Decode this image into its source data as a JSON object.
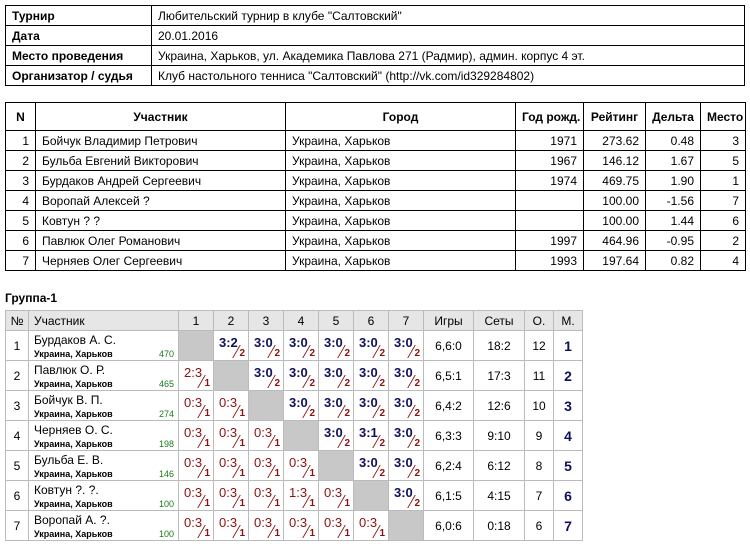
{
  "info": [
    {
      "label": "Турнир",
      "value": "Любительский турнир в клубе \"Салтовский\""
    },
    {
      "label": "Дата",
      "value": "20.01.2016"
    },
    {
      "label": "Место проведения",
      "value": "Украина, Харьков, ул. Академика Павлова 271 (Радмир), админ. корпус 4 эт."
    },
    {
      "label": "Организатор / судья",
      "value": "Клуб настольного тенниса \"Салтовский\" (http://vk.com/id329284802)"
    }
  ],
  "players": {
    "headers": [
      "N",
      "Участник",
      "Город",
      "Год рожд.",
      "Рейтинг",
      "Дельта",
      "Место"
    ],
    "rows": [
      [
        "1",
        "Бойчук Владимир Петрович",
        "Украина, Харьков",
        "1971",
        "273.62",
        "0.48",
        "3"
      ],
      [
        "2",
        "Бульба Евгений Викторович",
        "Украина, Харьков",
        "1967",
        "146.12",
        "1.67",
        "5"
      ],
      [
        "3",
        "Бурдаков Андрей Сергеевич",
        "Украина, Харьков",
        "1974",
        "469.75",
        "1.90",
        "1"
      ],
      [
        "4",
        "Воропай Алексей ?",
        "Украина, Харьков",
        null,
        "100.00",
        "-1.56",
        "7"
      ],
      [
        "5",
        "Ковтун ? ?",
        "Украина, Харьков",
        null,
        "100.00",
        "1.44",
        "6"
      ],
      [
        "6",
        "Павлюк Олег Романович",
        "Украина, Харьков",
        "1997",
        "464.96",
        "-0.95",
        "2"
      ],
      [
        "7",
        "Черняев Олег Сергеевич",
        "Украина, Харьков",
        "1993",
        "197.64",
        "0.82",
        "4"
      ]
    ]
  },
  "group": {
    "title": "Группа-1",
    "headers": [
      "№",
      "Участник",
      "1",
      "2",
      "3",
      "4",
      "5",
      "6",
      "7",
      "Игры",
      "Сеты",
      "О.",
      "М."
    ],
    "rows": [
      {
        "n": "1",
        "name": "Бурдаков А. С.",
        "city": "Украина, Харьков",
        "rating": "470",
        "results": [
          null,
          {
            "score": "3:2",
            "points": "2"
          },
          {
            "score": "3:0",
            "points": "2"
          },
          {
            "score": "3:0",
            "points": "2"
          },
          {
            "score": "3:0",
            "points": "2"
          },
          {
            "score": "3:0",
            "points": "2"
          },
          {
            "score": "3:0",
            "points": "2"
          }
        ],
        "games": "6,6:0",
        "sets": "18:2",
        "points": "12",
        "place": "1"
      },
      {
        "n": "2",
        "name": "Павлюк О. Р.",
        "city": "Украина, Харьков",
        "rating": "465",
        "results": [
          {
            "score": "2:3",
            "points": "1"
          },
          null,
          {
            "score": "3:0",
            "points": "2"
          },
          {
            "score": "3:0",
            "points": "2"
          },
          {
            "score": "3:0",
            "points": "2"
          },
          {
            "score": "3:0",
            "points": "2"
          },
          {
            "score": "3:0",
            "points": "2"
          }
        ],
        "games": "6,5:1",
        "sets": "17:3",
        "points": "11",
        "place": "2"
      },
      {
        "n": "3",
        "name": "Бойчук В. П.",
        "city": "Украина, Харьков",
        "rating": "274",
        "results": [
          {
            "score": "0:3",
            "points": "1"
          },
          {
            "score": "0:3",
            "points": "1"
          },
          null,
          {
            "score": "3:0",
            "points": "2"
          },
          {
            "score": "3:0",
            "points": "2"
          },
          {
            "score": "3:0",
            "points": "2"
          },
          {
            "score": "3:0",
            "points": "2"
          }
        ],
        "games": "6,4:2",
        "sets": "12:6",
        "points": "10",
        "place": "3"
      },
      {
        "n": "4",
        "name": "Черняев О. С.",
        "city": "Украина, Харьков",
        "rating": "198",
        "results": [
          {
            "score": "0:3",
            "points": "1"
          },
          {
            "score": "0:3",
            "points": "1"
          },
          {
            "score": "0:3",
            "points": "1"
          },
          null,
          {
            "score": "3:0",
            "points": "2"
          },
          {
            "score": "3:1",
            "points": "2"
          },
          {
            "score": "3:0",
            "points": "2"
          }
        ],
        "games": "6,3:3",
        "sets": "9:10",
        "points": "9",
        "place": "4"
      },
      {
        "n": "5",
        "name": "Бульба Е. В.",
        "city": "Украина, Харьков",
        "rating": "146",
        "results": [
          {
            "score": "0:3",
            "points": "1"
          },
          {
            "score": "0:3",
            "points": "1"
          },
          {
            "score": "0:3",
            "points": "1"
          },
          {
            "score": "0:3",
            "points": "1"
          },
          null,
          {
            "score": "3:0",
            "points": "2"
          },
          {
            "score": "3:0",
            "points": "2"
          }
        ],
        "games": "6,2:4",
        "sets": "6:12",
        "points": "8",
        "place": "5"
      },
      {
        "n": "6",
        "name": "Ковтун ?. ?.",
        "city": "Украина, Харьков",
        "rating": "100",
        "results": [
          {
            "score": "0:3",
            "points": "1"
          },
          {
            "score": "0:3",
            "points": "1"
          },
          {
            "score": "0:3",
            "points": "1"
          },
          {
            "score": "1:3",
            "points": "1"
          },
          {
            "score": "0:3",
            "points": "1"
          },
          null,
          {
            "score": "3:0",
            "points": "2"
          }
        ],
        "games": "6,1:5",
        "sets": "4:15",
        "points": "7",
        "place": "6"
      },
      {
        "n": "7",
        "name": "Воропай А. ?.",
        "city": "Украина, Харьков",
        "rating": "100",
        "results": [
          {
            "score": "0:3",
            "points": "1"
          },
          {
            "score": "0:3",
            "points": "1"
          },
          {
            "score": "0:3",
            "points": "1"
          },
          {
            "score": "0:3",
            "points": "1"
          },
          {
            "score": "0:3",
            "points": "1"
          },
          {
            "score": "0:3",
            "points": "1"
          },
          null
        ],
        "games": "6,0:6",
        "sets": "0:18",
        "points": "6",
        "place": "7"
      }
    ]
  }
}
